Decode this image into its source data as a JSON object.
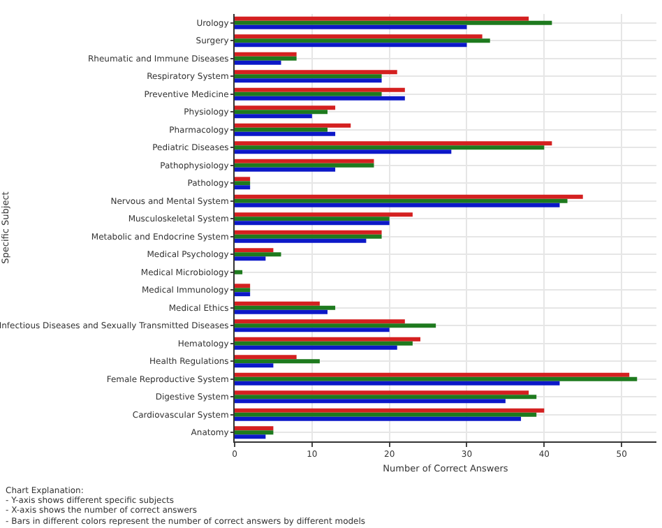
{
  "chart_data": {
    "type": "bar",
    "orientation": "horizontal",
    "xlabel": "Number of Correct Answers",
    "ylabel": "Specific Subject",
    "categories": [
      "Urology",
      "Surgery",
      "Rheumatic and Immune Diseases",
      "Respiratory System",
      "Preventive Medicine",
      "Physiology",
      "Pharmacology",
      "Pediatric Diseases",
      "Pathophysiology",
      "Pathology",
      "Nervous and Mental System",
      "Musculoskeletal System",
      "Metabolic and Endocrine System",
      "Medical Psychology",
      "Medical Microbiology",
      "Medical Immunology",
      "Medical Ethics",
      "Infectious Diseases and Sexually Transmitted Diseases",
      "Hematology",
      "Health Regulations",
      "Female Reproductive System",
      "Digestive System",
      "Cardiovascular System",
      "Anatomy"
    ],
    "series": [
      {
        "color": "#0c18c8",
        "values": [
          30,
          30,
          6,
          19,
          22,
          10,
          13,
          28,
          13,
          2,
          42,
          20,
          17,
          4,
          0,
          2,
          12,
          20,
          21,
          5,
          42,
          35,
          37,
          4
        ]
      },
      {
        "color": "#1e7a1e",
        "values": [
          41,
          33,
          8,
          19,
          19,
          12,
          12,
          40,
          18,
          2,
          43,
          20,
          19,
          6,
          1,
          2,
          13,
          26,
          23,
          11,
          52,
          39,
          39,
          5
        ]
      },
      {
        "color": "#d42020",
        "values": [
          38,
          32,
          8,
          21,
          22,
          13,
          15,
          41,
          18,
          2,
          45,
          23,
          19,
          5,
          0,
          2,
          11,
          22,
          24,
          8,
          51,
          38,
          40,
          5
        ]
      }
    ],
    "xlim": [
      0,
      54.5
    ],
    "xticks": [
      0,
      10,
      20,
      30,
      40,
      50
    ],
    "grid": true,
    "annotations": [
      "Chart Explanation:",
      "- Y-axis shows different specific subjects",
      "- X-axis shows the number of correct answers",
      "- Bars in different colors represent the number of correct answers by different models"
    ]
  }
}
